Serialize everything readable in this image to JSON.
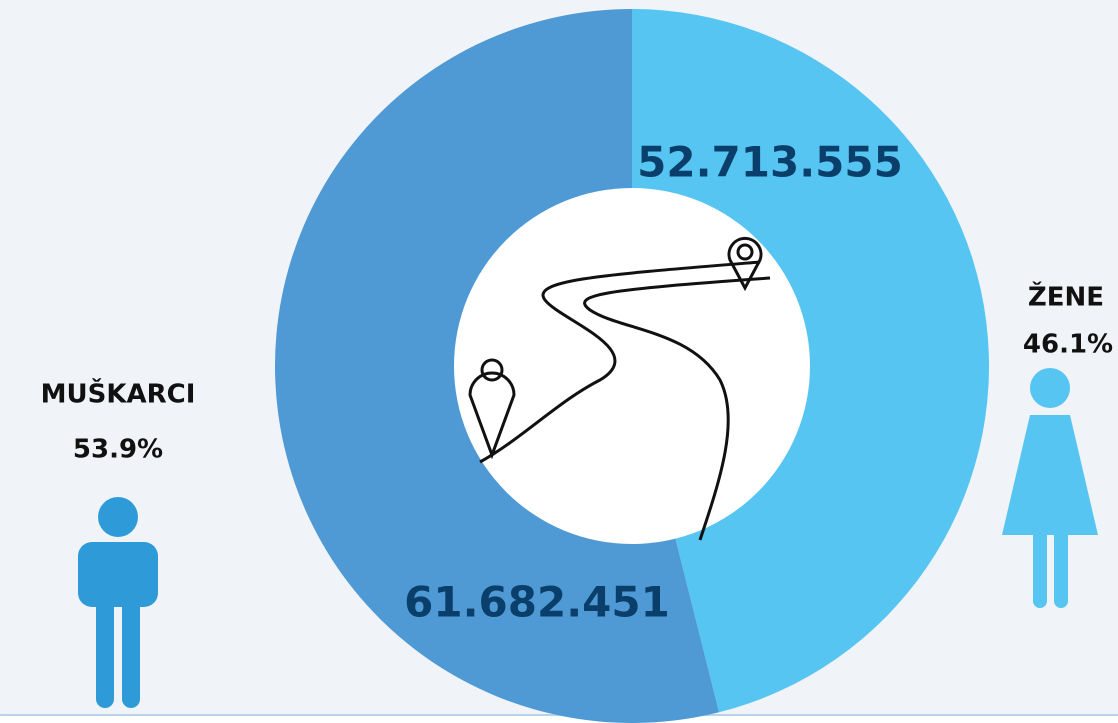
{
  "chart_data": {
    "type": "pie",
    "categories": [
      "ŽENE",
      "MUŠKARCI"
    ],
    "values": [
      52713555,
      61682451
    ],
    "value_labels": [
      "52.713.555",
      "61.682.451"
    ],
    "percents": [
      46.1,
      53.9
    ],
    "percent_labels": [
      "46.1%",
      "53.9%"
    ],
    "colors": [
      "#56c5f1",
      "#4f9ad4"
    ],
    "label_color": "#0b3f6b"
  }
}
